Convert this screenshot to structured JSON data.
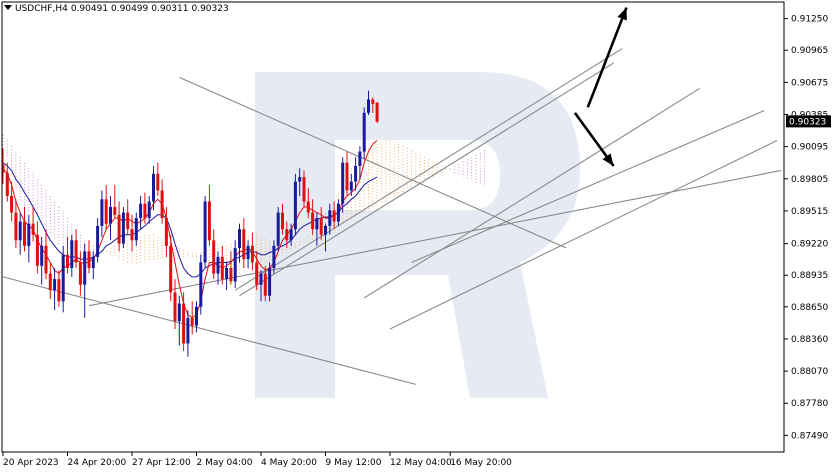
{
  "header": {
    "symbol": "USDCHF,H4",
    "open": "0.90491",
    "high": "0.90499",
    "low": "0.90311",
    "close": "0.90323"
  },
  "price_axis": {
    "ticks": [
      "0.91250",
      "0.90965",
      "0.90675",
      "0.90385",
      "0.90095",
      "0.89805",
      "0.89515",
      "0.89220",
      "0.88935",
      "0.88650",
      "0.88360",
      "0.88070",
      "0.87780",
      "0.87490"
    ],
    "current_label": "0.90323"
  },
  "time_axis": {
    "ticks": [
      "20 Apr 2023",
      "24 Apr 20:00",
      "27 Apr 12:00",
      "2 May 04:00",
      "4 May 20:00",
      "9 May 12:00",
      "12 May 04:00",
      "16 May 20:00"
    ]
  },
  "colors": {
    "bull": "#1a1aa0",
    "bear": "#e01010",
    "tenkan": "#e01010",
    "kijun": "#1a1aa0",
    "cloud": "#f0a050",
    "cloud_alt": "#c080c0",
    "trendline": "#8a8a8a",
    "watermark": "#dde4ef"
  },
  "chart_data": {
    "type": "candlestick",
    "instrument": "USDCHF",
    "timeframe": "H4",
    "ylim": [
      0.8734,
      0.914
    ],
    "last_close": 0.90323,
    "candles": [
      [
        0.8993,
        0.9008,
        0.8976,
        0.8986
      ],
      [
        0.8986,
        0.8995,
        0.896,
        0.8965
      ],
      [
        0.8965,
        0.8978,
        0.8942,
        0.895
      ],
      [
        0.895,
        0.8962,
        0.8918,
        0.8925
      ],
      [
        0.8925,
        0.895,
        0.8912,
        0.8942
      ],
      [
        0.8942,
        0.8955,
        0.8915,
        0.892
      ],
      [
        0.892,
        0.8948,
        0.8905,
        0.894
      ],
      [
        0.894,
        0.8955,
        0.8924,
        0.893
      ],
      [
        0.893,
        0.8942,
        0.8895,
        0.8902
      ],
      [
        0.8902,
        0.8928,
        0.8885,
        0.892
      ],
      [
        0.892,
        0.8935,
        0.889,
        0.8895
      ],
      [
        0.8895,
        0.8905,
        0.8872,
        0.888
      ],
      [
        0.888,
        0.89,
        0.8862,
        0.889
      ],
      [
        0.889,
        0.8898,
        0.8865,
        0.887
      ],
      [
        0.887,
        0.892,
        0.886,
        0.8912
      ],
      [
        0.8912,
        0.8928,
        0.8895,
        0.89
      ],
      [
        0.89,
        0.893,
        0.8892,
        0.8925
      ],
      [
        0.8925,
        0.8935,
        0.89,
        0.8905
      ],
      [
        0.8905,
        0.8915,
        0.8875,
        0.8885
      ],
      [
        0.8885,
        0.8922,
        0.8855,
        0.8915
      ],
      [
        0.8915,
        0.8925,
        0.8895,
        0.89
      ],
      [
        0.89,
        0.8915,
        0.889,
        0.891
      ],
      [
        0.891,
        0.8945,
        0.8905,
        0.8938
      ],
      [
        0.8938,
        0.897,
        0.8928,
        0.8962
      ],
      [
        0.8962,
        0.8975,
        0.8935,
        0.894
      ],
      [
        0.894,
        0.8965,
        0.8925,
        0.8955
      ],
      [
        0.8955,
        0.8975,
        0.8945,
        0.8948
      ],
      [
        0.8948,
        0.896,
        0.8915,
        0.8922
      ],
      [
        0.8922,
        0.8955,
        0.8918,
        0.895
      ],
      [
        0.895,
        0.8962,
        0.893,
        0.8935
      ],
      [
        0.8935,
        0.8948,
        0.8915,
        0.8925
      ],
      [
        0.8925,
        0.895,
        0.892,
        0.8945
      ],
      [
        0.8945,
        0.8965,
        0.8935,
        0.8958
      ],
      [
        0.8958,
        0.8968,
        0.894,
        0.8945
      ],
      [
        0.8945,
        0.8965,
        0.894,
        0.896
      ],
      [
        0.896,
        0.8992,
        0.8952,
        0.8985
      ],
      [
        0.8985,
        0.8995,
        0.8965,
        0.897
      ],
      [
        0.897,
        0.898,
        0.894,
        0.8945
      ],
      [
        0.8945,
        0.8955,
        0.891,
        0.892
      ],
      [
        0.892,
        0.893,
        0.887,
        0.8878
      ],
      [
        0.8878,
        0.889,
        0.8845,
        0.8852
      ],
      [
        0.8852,
        0.8875,
        0.883,
        0.8868
      ],
      [
        0.8868,
        0.8878,
        0.8825,
        0.8832
      ],
      [
        0.8832,
        0.8862,
        0.882,
        0.8855
      ],
      [
        0.8855,
        0.887,
        0.884,
        0.8848
      ],
      [
        0.8848,
        0.887,
        0.8842,
        0.8865
      ],
      [
        0.8865,
        0.8912,
        0.8858,
        0.8905
      ],
      [
        0.8905,
        0.8965,
        0.89,
        0.896
      ],
      [
        0.896,
        0.8975,
        0.892,
        0.8925
      ],
      [
        0.8925,
        0.8935,
        0.889,
        0.8895
      ],
      [
        0.8895,
        0.8915,
        0.8885,
        0.891
      ],
      [
        0.891,
        0.892,
        0.8885,
        0.889
      ],
      [
        0.889,
        0.8905,
        0.888,
        0.89
      ],
      [
        0.89,
        0.8915,
        0.8885,
        0.8888
      ],
      [
        0.8888,
        0.8925,
        0.8882,
        0.8918
      ],
      [
        0.8918,
        0.894,
        0.8905,
        0.8935
      ],
      [
        0.8935,
        0.8945,
        0.89,
        0.8908
      ],
      [
        0.8908,
        0.8925,
        0.89,
        0.892
      ],
      [
        0.892,
        0.8932,
        0.8898,
        0.8905
      ],
      [
        0.8905,
        0.8915,
        0.888,
        0.8885
      ],
      [
        0.8885,
        0.8898,
        0.887,
        0.8895
      ],
      [
        0.8895,
        0.8902,
        0.887,
        0.8875
      ],
      [
        0.8875,
        0.8905,
        0.887,
        0.89
      ],
      [
        0.89,
        0.8925,
        0.8895,
        0.892
      ],
      [
        0.892,
        0.8955,
        0.8915,
        0.895
      ],
      [
        0.895,
        0.8958,
        0.893,
        0.8935
      ],
      [
        0.8935,
        0.8942,
        0.8918,
        0.8925
      ],
      [
        0.8925,
        0.894,
        0.892,
        0.8935
      ],
      [
        0.8935,
        0.8985,
        0.893,
        0.8978
      ],
      [
        0.8978,
        0.899,
        0.8965,
        0.8982
      ],
      [
        0.8982,
        0.8988,
        0.8955,
        0.896
      ],
      [
        0.896,
        0.8972,
        0.8945,
        0.895
      ],
      [
        0.895,
        0.8962,
        0.893,
        0.8935
      ],
      [
        0.8935,
        0.895,
        0.892,
        0.8945
      ],
      [
        0.8945,
        0.8955,
        0.8925,
        0.893
      ],
      [
        0.893,
        0.894,
        0.8915,
        0.8938
      ],
      [
        0.8938,
        0.8958,
        0.893,
        0.8952
      ],
      [
        0.8952,
        0.896,
        0.8935,
        0.8942
      ],
      [
        0.8942,
        0.8962,
        0.8938,
        0.8958
      ],
      [
        0.8958,
        0.9,
        0.895,
        0.8995
      ],
      [
        0.8995,
        0.9005,
        0.8965,
        0.897
      ],
      [
        0.897,
        0.8985,
        0.8965,
        0.8978
      ],
      [
        0.8978,
        0.9,
        0.897,
        0.8992
      ],
      [
        0.8992,
        0.901,
        0.898,
        0.9005
      ],
      [
        0.9005,
        0.9045,
        0.8998,
        0.904
      ],
      [
        0.904,
        0.906,
        0.9038,
        0.9052
      ],
      [
        0.9052,
        0.9054,
        0.904,
        0.9048
      ],
      [
        0.9049,
        0.905,
        0.9031,
        0.9032
      ]
    ],
    "tenkan_sen": [
      0.899,
      0.8985,
      0.8975,
      0.896,
      0.895,
      0.8942,
      0.8938,
      0.8935,
      0.8925,
      0.8918,
      0.8912,
      0.8905,
      0.8898,
      0.8895,
      0.89,
      0.8902,
      0.8905,
      0.8908,
      0.8905,
      0.8904,
      0.8906,
      0.8908,
      0.8915,
      0.8925,
      0.8935,
      0.894,
      0.8945,
      0.8945,
      0.8942,
      0.8945,
      0.8942,
      0.894,
      0.8942,
      0.8945,
      0.895,
      0.8958,
      0.8962,
      0.8958,
      0.8945,
      0.8925,
      0.8905,
      0.8885,
      0.8868,
      0.8858,
      0.8855,
      0.8858,
      0.887,
      0.889,
      0.8905,
      0.8905,
      0.8902,
      0.89,
      0.8902,
      0.8905,
      0.891,
      0.8915,
      0.8915,
      0.8918,
      0.8915,
      0.8908,
      0.8902,
      0.8898,
      0.89,
      0.8905,
      0.8915,
      0.8925,
      0.893,
      0.8935,
      0.8942,
      0.895,
      0.8955,
      0.8955,
      0.8952,
      0.895,
      0.8948,
      0.8945,
      0.8945,
      0.8948,
      0.895,
      0.896,
      0.8965,
      0.8968,
      0.8972,
      0.898,
      0.8995,
      0.9005,
      0.9012,
      0.9015
    ],
    "kijun_sen": [
      0.8995,
      0.8992,
      0.8988,
      0.898,
      0.8975,
      0.8968,
      0.8962,
      0.8955,
      0.8948,
      0.894,
      0.8932,
      0.8925,
      0.892,
      0.8915,
      0.8912,
      0.891,
      0.891,
      0.891,
      0.8908,
      0.8908,
      0.8908,
      0.891,
      0.8912,
      0.8915,
      0.892,
      0.8922,
      0.8925,
      0.8928,
      0.893,
      0.893,
      0.893,
      0.8932,
      0.8935,
      0.8938,
      0.8942,
      0.8945,
      0.8948,
      0.8948,
      0.8945,
      0.8935,
      0.8922,
      0.891,
      0.89,
      0.8895,
      0.8892,
      0.8892,
      0.8895,
      0.89,
      0.8902,
      0.8904,
      0.8905,
      0.8905,
      0.8905,
      0.8906,
      0.8908,
      0.891,
      0.8912,
      0.8914,
      0.8915,
      0.8914,
      0.8912,
      0.8912,
      0.8914,
      0.8915,
      0.8918,
      0.892,
      0.8922,
      0.8925,
      0.893,
      0.8935,
      0.8938,
      0.894,
      0.8942,
      0.8944,
      0.8945,
      0.8946,
      0.8946,
      0.8948,
      0.895,
      0.8955,
      0.8958,
      0.8962,
      0.8965,
      0.897,
      0.8975,
      0.8978,
      0.898,
      0.8982
    ],
    "cloud": {
      "senkou_a": [
        0.901,
        0.9,
        0.8985,
        0.897,
        0.896,
        0.8955,
        0.895,
        0.8948,
        0.8945,
        0.894,
        0.8935,
        0.893,
        0.8925,
        0.892,
        0.8918,
        0.8916,
        0.8914,
        0.8912,
        0.8912,
        0.8912,
        0.8912,
        0.8912,
        0.8912,
        0.8914,
        0.8916,
        0.8918,
        0.892,
        0.8922,
        0.8924,
        0.8925,
        0.8926,
        0.8927,
        0.8928,
        0.893,
        0.893,
        0.893,
        0.8928,
        0.8926,
        0.8924,
        0.8922,
        0.892,
        0.8918,
        0.8916,
        0.8915,
        0.8914,
        0.8914,
        0.8914,
        0.8915,
        0.8916,
        0.8917,
        0.8918,
        0.8919,
        0.892,
        0.8922,
        0.8924,
        0.8926,
        0.8928,
        0.8929,
        0.893,
        0.893,
        0.8928,
        0.8926,
        0.8924,
        0.8922,
        0.892,
        0.892,
        0.892,
        0.8921,
        0.8922,
        0.8924,
        0.8926,
        0.893,
        0.8935,
        0.894,
        0.8945,
        0.895,
        0.8955,
        0.896,
        0.8968,
        0.8975,
        0.8982,
        0.899,
        0.8998,
        0.9002,
        0.9005,
        0.9008,
        0.901,
        0.9012,
        0.9014,
        0.9015,
        0.9015,
        0.9014,
        0.9012,
        0.901,
        0.9008,
        0.9006,
        0.9004,
        0.9002,
        0.9,
        0.8998,
        0.8996,
        0.8994,
        0.8992,
        0.899,
        0.8988,
        0.8986,
        0.8984,
        0.8982,
        0.898,
        0.8978,
        0.8976,
        0.8975,
        0.8975
      ],
      "senkou_b": [
        0.902,
        0.9015,
        0.901,
        0.9005,
        0.9,
        0.8995,
        0.899,
        0.8985,
        0.898,
        0.8975,
        0.897,
        0.8965,
        0.896,
        0.8955,
        0.895,
        0.8945,
        0.894,
        0.8935,
        0.893,
        0.8925,
        0.8922,
        0.892,
        0.8918,
        0.8916,
        0.8914,
        0.8912,
        0.891,
        0.8908,
        0.8906,
        0.8905,
        0.8904,
        0.8904,
        0.8904,
        0.8905,
        0.8906,
        0.8907,
        0.8908,
        0.8908,
        0.8908,
        0.8908,
        0.8908,
        0.8908,
        0.8908,
        0.8908,
        0.8908,
        0.8906,
        0.8904,
        0.8902,
        0.89,
        0.8898,
        0.8896,
        0.8895,
        0.8895,
        0.8895,
        0.8895,
        0.8895,
        0.8896,
        0.8897,
        0.8898,
        0.89,
        0.8902,
        0.8904,
        0.8906,
        0.8908,
        0.891,
        0.8912,
        0.8914,
        0.8916,
        0.8918,
        0.892,
        0.8922,
        0.8924,
        0.8926,
        0.8928,
        0.893,
        0.8932,
        0.8934,
        0.8936,
        0.8938,
        0.894,
        0.8942,
        0.8944,
        0.8946,
        0.8948,
        0.895,
        0.8952,
        0.8954,
        0.8956,
        0.8958,
        0.896,
        0.8962,
        0.8964,
        0.8966,
        0.8968,
        0.897,
        0.8972,
        0.8974,
        0.8976,
        0.8978,
        0.898,
        0.8982,
        0.8984,
        0.8986,
        0.8988,
        0.899,
        0.8992,
        0.8994,
        0.8996,
        0.8998,
        0.9,
        0.9002,
        0.9004,
        0.9006,
        0.9008
      ]
    },
    "trendlines": [
      [
        [
          0,
          0.8892
        ],
        [
          96,
          0.8795
        ]
      ],
      [
        [
          20,
          0.8866
        ],
        [
          181,
          0.8988
        ]
      ],
      [
        [
          41,
          0.9072
        ],
        [
          131,
          0.8918
        ]
      ],
      [
        [
          54,
          0.888
        ],
        [
          144,
          0.9098
        ]
      ],
      [
        [
          55,
          0.8875
        ],
        [
          142,
          0.9085
        ]
      ],
      [
        [
          90,
          0.8845
        ],
        [
          180,
          0.9015
        ]
      ],
      [
        [
          84,
          0.8873
        ],
        [
          162,
          0.9062
        ]
      ],
      [
        [
          95,
          0.8905
        ],
        [
          177,
          0.9042
        ]
      ]
    ],
    "arrows": [
      [
        [
          133,
          0.904
        ],
        [
          142,
          0.8992
        ]
      ],
      [
        [
          136,
          0.9045
        ],
        [
          145,
          0.9135
        ]
      ]
    ]
  }
}
